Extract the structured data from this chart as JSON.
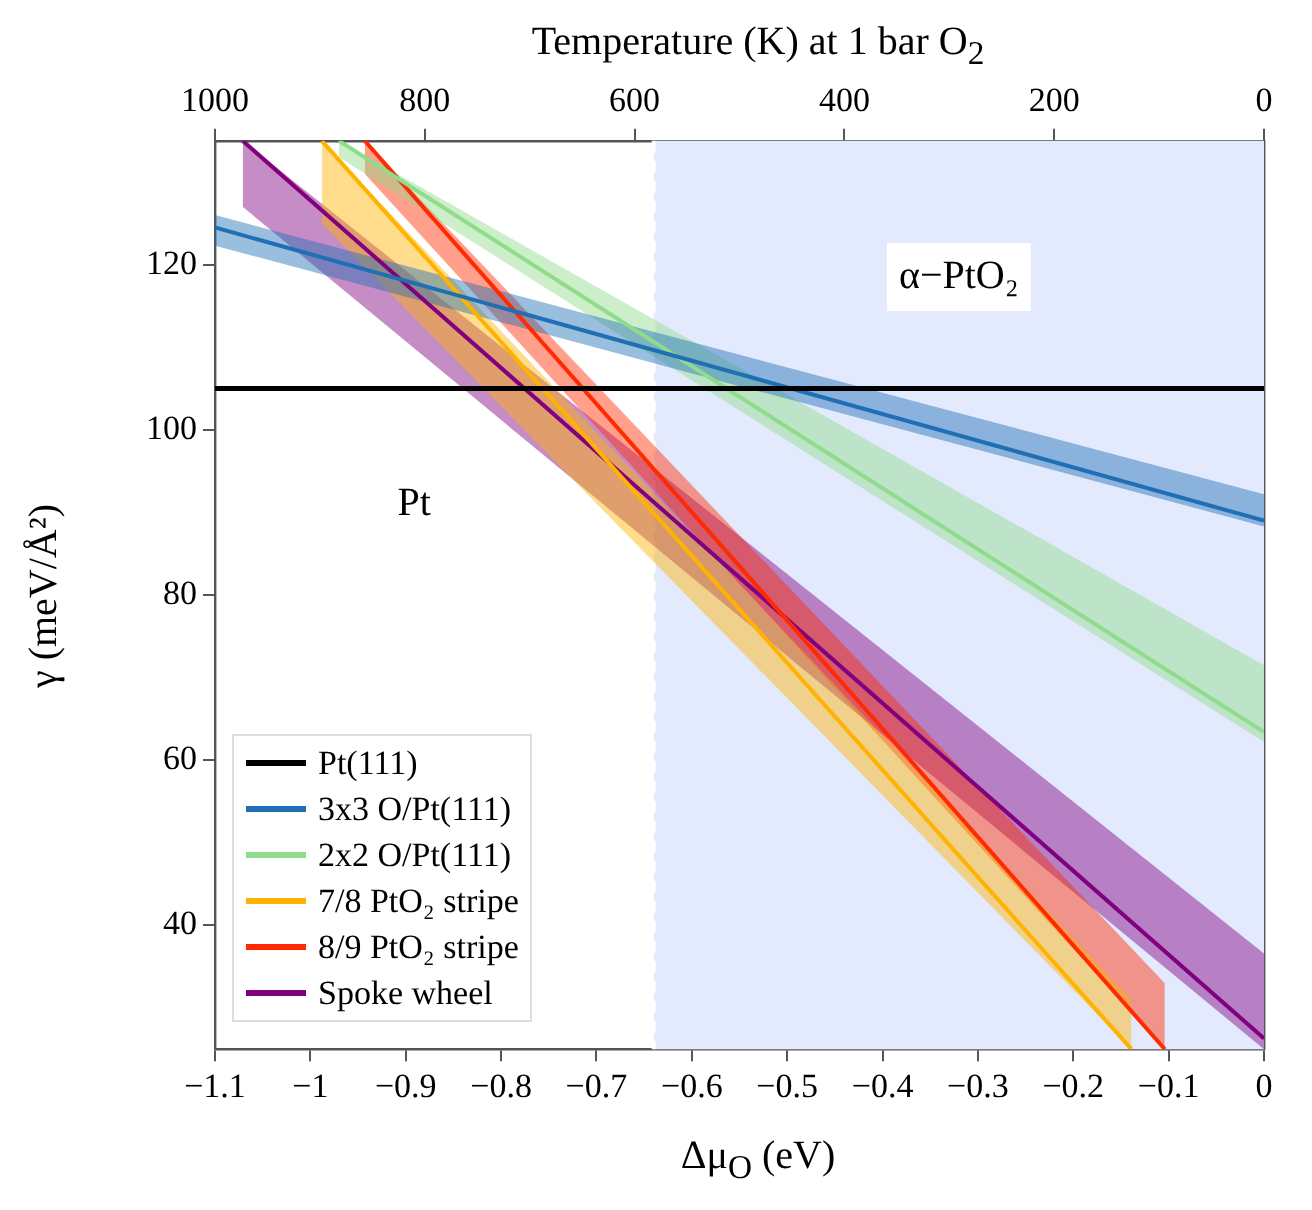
{
  "chart_data": {
    "type": "line",
    "xlabel": "Δμ$_{O}$ (eV)",
    "ylabel": "γ (meV/Å²)",
    "x2label": "Temperature (K) at 1 bar O$_{2}$",
    "xlim": [
      -1.1,
      0
    ],
    "xticks": [
      -1.1,
      -1,
      -0.9,
      -0.8,
      -0.7,
      -0.6,
      -0.5,
      -0.4,
      -0.3,
      -0.2,
      -0.1,
      0
    ],
    "x2lim": [
      1000,
      0
    ],
    "x2ticks": [
      1000,
      800,
      600,
      400,
      200,
      0
    ],
    "ylim": [
      25,
      135
    ],
    "yticks": [
      40,
      60,
      80,
      100,
      120
    ],
    "legend": "bottom left",
    "marker": "none",
    "line_style": "solid",
    "annotations": [
      "Pt"
    ],
    "bands": [
      {
        "axis": "x",
        "from": -0.64,
        "to": 0,
        "label": "α−PtO₂",
        "color": "#e3eafd"
      }
    ],
    "ref_lines": [
      {
        "axis": "x",
        "value": -0.64,
        "color": "#ffffff",
        "line_style": "dashed"
      }
    ],
    "series": [
      {
        "name": "Pt(111)",
        "color": "#000000",
        "x": [
          -1.1,
          0
        ],
        "values": [
          105,
          105
        ]
      },
      {
        "name": "3x3 O/Pt(111)",
        "color": "#1f6fb4",
        "x": [
          -1.1,
          0
        ],
        "values": [
          124.5,
          89
        ],
        "lower": [
          122.3,
          88.3
        ],
        "upper": [
          126,
          92.2
        ]
      },
      {
        "name": "2x2 O/Pt(111)",
        "color": "#8fdc8a",
        "x": [
          -0.97,
          0
        ],
        "values": [
          135,
          63.4
        ],
        "lower": [
          133,
          62.2
        ],
        "upper": [
          135,
          71.5
        ]
      },
      {
        "name": "7/8 PtO₂ stripe",
        "color": "#ffb300",
        "x": [
          -0.988,
          -0.139
        ],
        "values": [
          135,
          25
        ],
        "lower": [
          125,
          25
        ],
        "upper": [
          135,
          31
        ]
      },
      {
        "name": "8/9 PtO₂ stripe",
        "color": "#ff2a00",
        "x": [
          -0.943,
          -0.104
        ],
        "values": [
          135,
          25
        ],
        "lower": [
          131,
          25
        ],
        "upper": [
          135,
          33
        ]
      },
      {
        "name": "Spoke wheel",
        "color": "#800080",
        "x": [
          -1.071,
          0
        ],
        "values": [
          135,
          26.3
        ],
        "lower": [
          127,
          25
        ],
        "upper": [
          135,
          36.6
        ]
      }
    ]
  }
}
